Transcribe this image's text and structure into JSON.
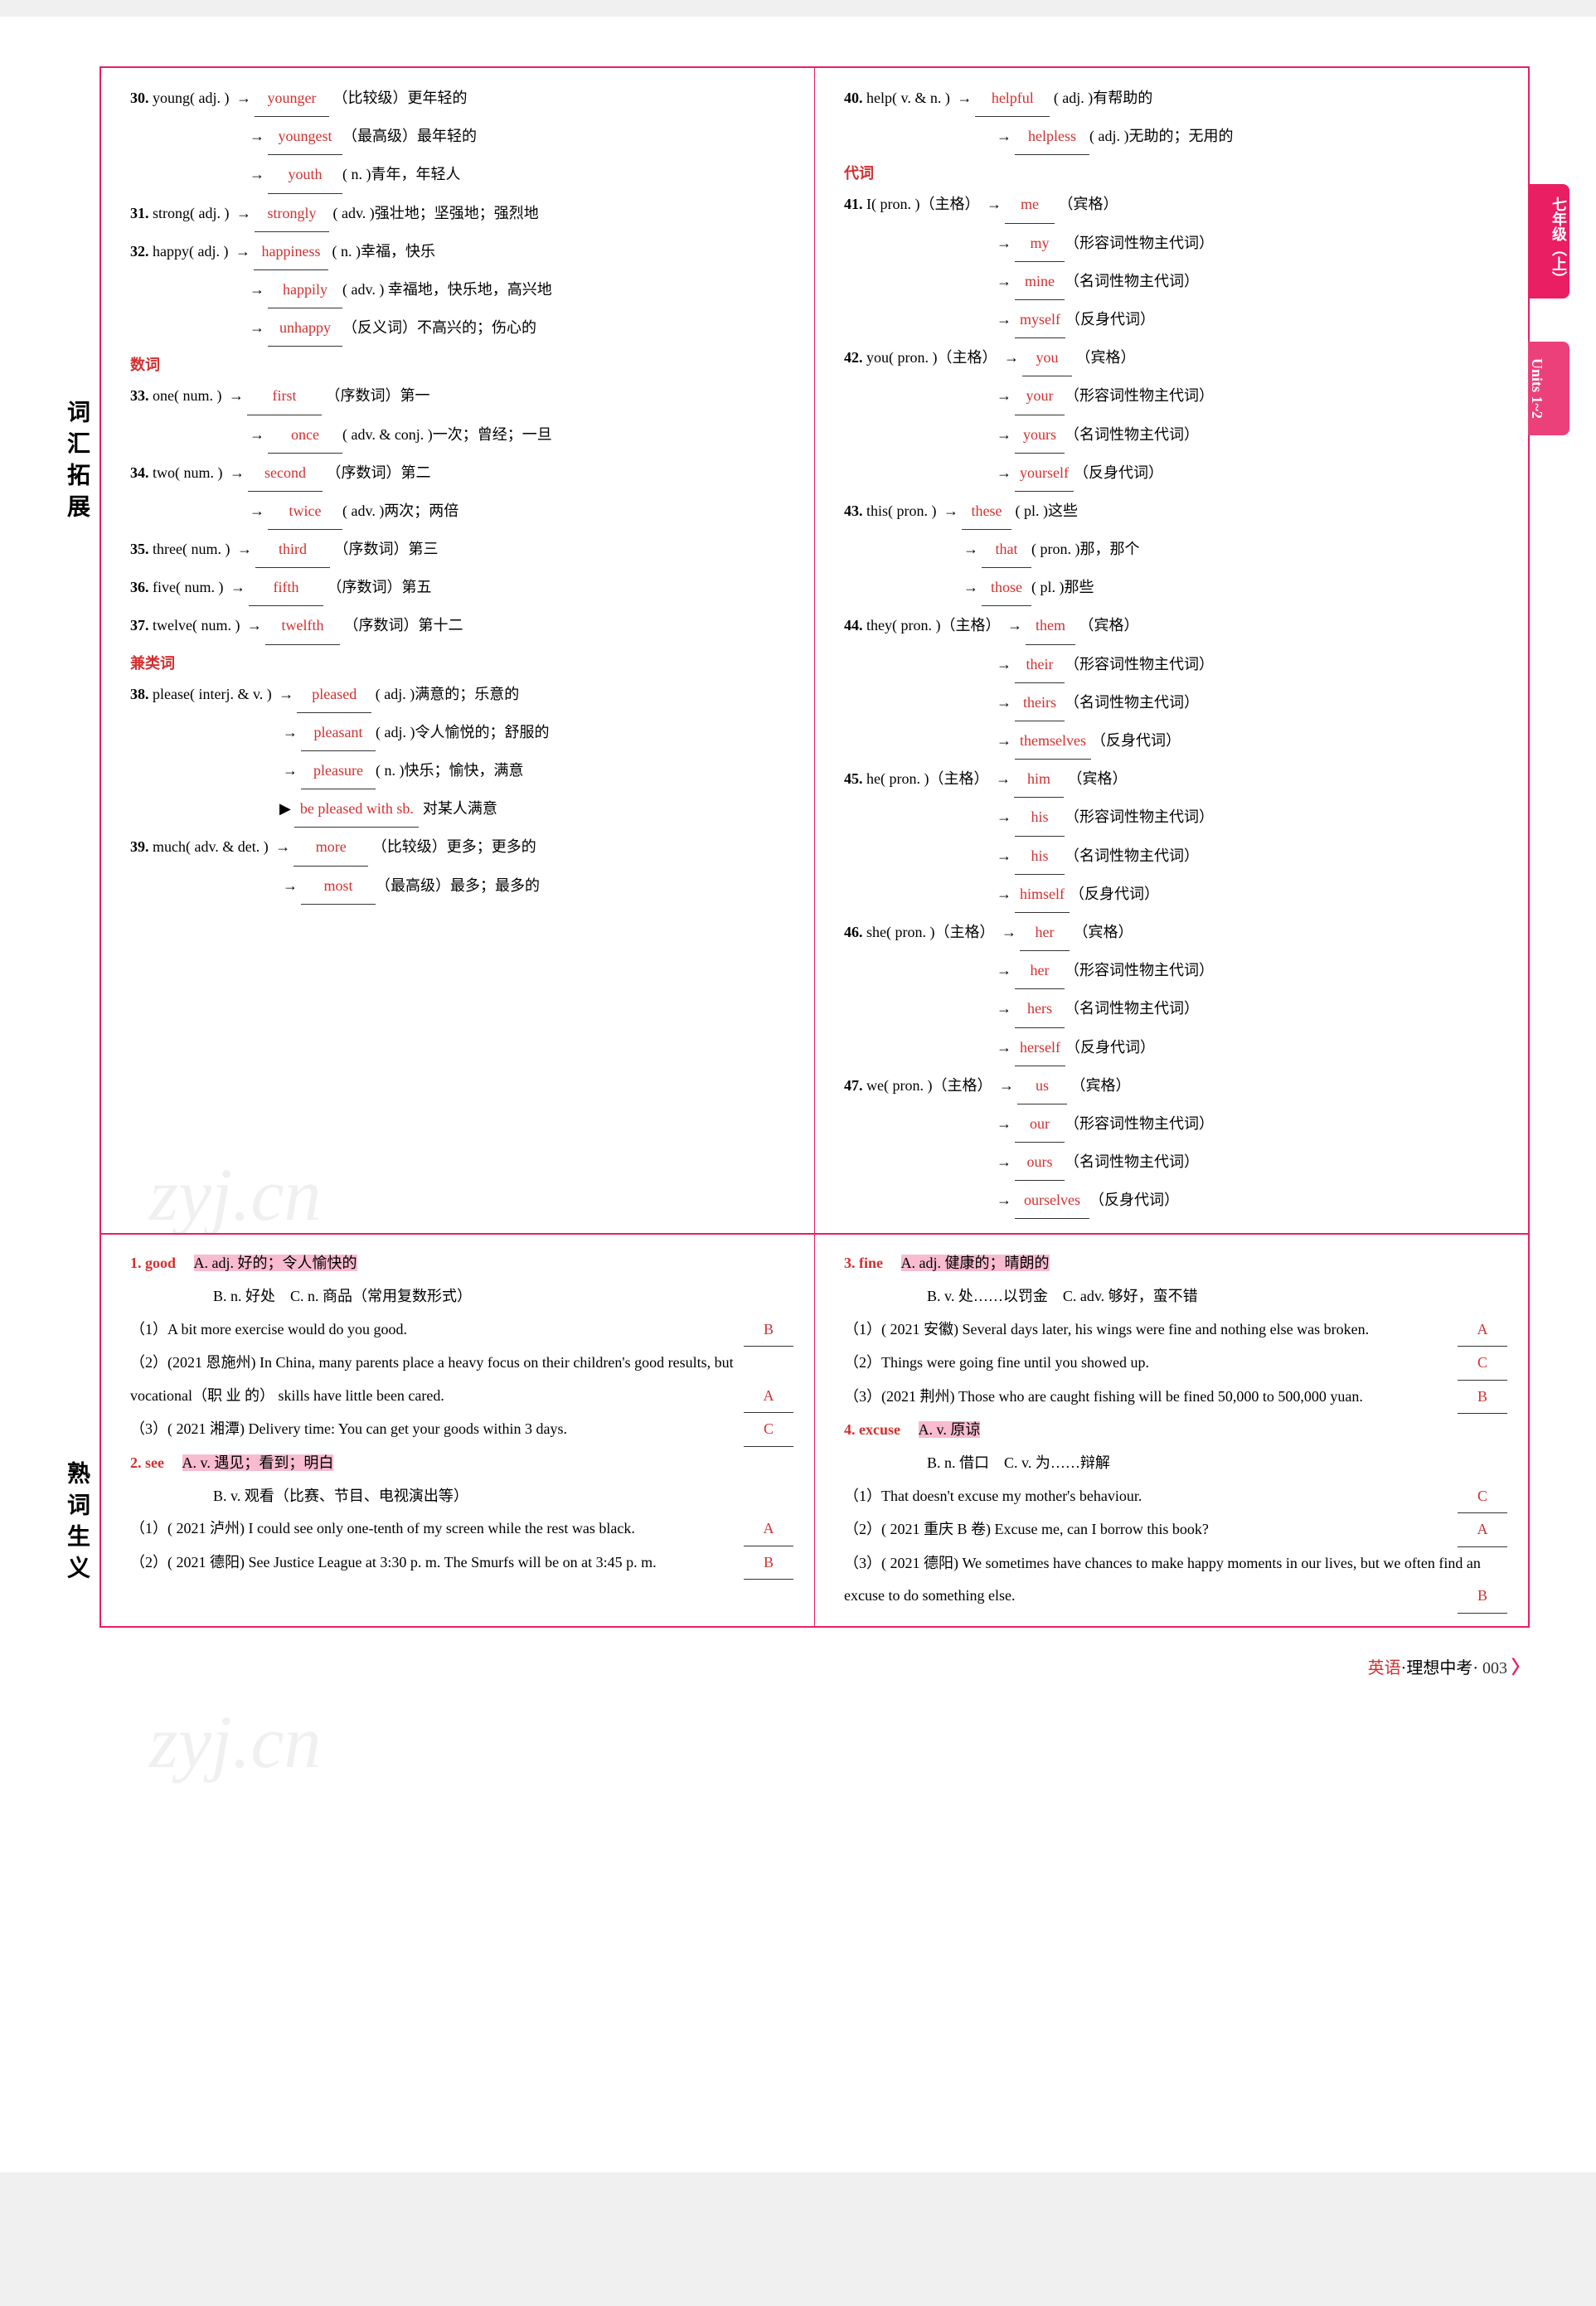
{
  "sideLabels": {
    "top": "词汇拓展",
    "bottom": "熟词生义"
  },
  "tabs": {
    "a": "七年级（上）",
    "b": "Units 1~2"
  },
  "watermark": {
    "text": "zyj.cn"
  },
  "footer": {
    "subject": "英语",
    "book": "·理想中考·",
    "page": "003"
  },
  "leftCol": {
    "e30": {
      "num": "30.",
      "head": "young( adj. )",
      "l1a": "younger",
      "l1b": "（比较级）更年轻的",
      "l2a": "youngest",
      "l2b": "（最高级）最年轻的",
      "l3a": "youth",
      "l3b": "( n. )青年，年轻人"
    },
    "e31": {
      "num": "31.",
      "head": "strong( adj. )",
      "l1a": "strongly",
      "l1b": "( adv. )强壮地；坚强地；强烈地"
    },
    "e32": {
      "num": "32.",
      "head": "happy( adj. )",
      "l1a": "happiness",
      "l1b": "( n. )幸福，快乐",
      "l2a": "happily",
      "l2b": "( adv. ) 幸福地，快乐地，高兴地",
      "l3a": "unhappy",
      "l3b": "（反义词）不高兴的；伤心的"
    },
    "sub1": "数词",
    "e33": {
      "num": "33.",
      "head": "one( num. )",
      "l1a": "first",
      "l1b": "（序数词）第一",
      "l2a": "once",
      "l2b": "( adv. & conj. )一次；曾经；一旦"
    },
    "e34": {
      "num": "34.",
      "head": "two( num. )",
      "l1a": "second",
      "l1b": "（序数词）第二",
      "l2a": "twice",
      "l2b": "( adv. )两次；两倍"
    },
    "e35": {
      "num": "35.",
      "head": "three( num. )",
      "l1a": "third",
      "l1b": "（序数词）第三"
    },
    "e36": {
      "num": "36.",
      "head": "five( num. )",
      "l1a": "fifth",
      "l1b": "（序数词）第五"
    },
    "e37": {
      "num": "37.",
      "head": "twelve( num. )",
      "l1a": "twelfth",
      "l1b": "（序数词）第十二"
    },
    "sub2": "兼类词",
    "e38": {
      "num": "38.",
      "head": "please( interj. & v. )",
      "l1a": "pleased",
      "l1b": "( adj. )满意的；乐意的",
      "l2a": "pleasant",
      "l2b": "( adj. )令人愉悦的；舒服的",
      "l3a": "pleasure",
      "l3b": "( n. )快乐；愉快，满意",
      "l4a": "be pleased with sb.",
      "l4b": "对某人满意"
    },
    "e39": {
      "num": "39.",
      "head": "much( adv. & det. )",
      "l1a": "more",
      "l1b": "（比较级）更多；更多的",
      "l2a": "most",
      "l2b": "（最高级）最多；最多的"
    }
  },
  "rightCol": {
    "e40": {
      "num": "40.",
      "head": "help( v. & n. )",
      "l1a": "helpful",
      "l1b": "( adj. )有帮助的",
      "l2a": "helpless",
      "l2b": "( adj. )无助的；无用的"
    },
    "sub1": "代词",
    "e41": {
      "num": "41.",
      "head": "I( pron. )（主格）",
      "l1a": "me",
      "l1b": "（宾格）",
      "l2a": "my",
      "l2b": "（形容词性物主代词）",
      "l3a": "mine",
      "l3b": "（名词性物主代词）",
      "l4a": "myself",
      "l4b": "（反身代词）"
    },
    "e42": {
      "num": "42.",
      "head": "you( pron. )（主格）",
      "l1a": "you",
      "l1b": "（宾格）",
      "l2a": "your",
      "l2b": "（形容词性物主代词）",
      "l3a": "yours",
      "l3b": "（名词性物主代词）",
      "l4a": "yourself",
      "l4b": "（反身代词）"
    },
    "e43": {
      "num": "43.",
      "head": "this( pron. )",
      "l1a": "these",
      "l1b": "( pl. )这些",
      "l2a": "that",
      "l2b": "( pron. )那，那个",
      "l3a": "those",
      "l3b": "( pl. )那些"
    },
    "e44": {
      "num": "44.",
      "head": "they( pron. )（主格）",
      "l1a": "them",
      "l1b": "（宾格）",
      "l2a": "their",
      "l2b": "（形容词性物主代词）",
      "l3a": "theirs",
      "l3b": "（名词性物主代词）",
      "l4a": "themselves",
      "l4b": "（反身代词）"
    },
    "e45": {
      "num": "45.",
      "head": "he( pron. )（主格）",
      "l1a": "him",
      "l1b": "（宾格）",
      "l2a": "his",
      "l2b": "（形容词性物主代词）",
      "l3a": "his",
      "l3b": "（名词性物主代词）",
      "l4a": "himself",
      "l4b": "（反身代词）"
    },
    "e46": {
      "num": "46.",
      "head": "she( pron. )（主格）",
      "l1a": "her",
      "l1b": "（宾格）",
      "l2a": "her",
      "l2b": "（形容词性物主代词）",
      "l3a": "hers",
      "l3b": "（名词性物主代词）",
      "l4a": "herself",
      "l4b": "（反身代词）"
    },
    "e47": {
      "num": "47.",
      "head": "we( pron. )（主格）",
      "l1a": "us",
      "l1b": "（宾格）",
      "l2a": "our",
      "l2b": "（形容词性物主代词）",
      "l3a": "ours",
      "l3b": "（名词性物主代词）",
      "l4a": "ourselves",
      "l4b": "（反身代词）"
    }
  },
  "sec2": {
    "left": {
      "w1": {
        "num": "1.",
        "word": "good",
        "A": "A. adj. 好的；令人愉快的",
        "opts": "B. n. 好处　C. n. 商品（常用复数形式）",
        "q1": "（1）A bit more exercise would do you good.",
        "a1": "B",
        "q2": "（2）(2021 恩施州) In China, many parents place a heavy focus on their children's good results, but vocational（职 业 的） skills have little been cared.",
        "a2": "A",
        "q3": "（3）( 2021 湘潭) Delivery time: You can get your goods within 3 days.",
        "a3": "C"
      },
      "w2": {
        "num": "2.",
        "word": "see",
        "A": "A. v. 遇见；看到；明白",
        "opts": "B. v. 观看（比赛、节目、电视演出等）",
        "q1": "（1）( 2021 泸州) I could see only one-tenth of my screen while the rest was black.",
        "a1": "A",
        "q2": "（2）( 2021 德阳) See Justice League at 3:30 p. m. The Smurfs will be on at 3:45 p. m.",
        "a2": "B"
      }
    },
    "right": {
      "w3": {
        "num": "3.",
        "word": "fine",
        "A": "A. adj. 健康的；晴朗的",
        "opts": "B. v. 处……以罚金　C. adv. 够好，蛮不错",
        "q1": "（1）( 2021 安徽) Several days later, his wings were fine and nothing else was broken.",
        "a1": "A",
        "q2": "（2）Things were going fine until you showed up.",
        "a2": "C",
        "q3": "（3）(2021 荆州) Those who are caught fishing will be fined 50,000 to 500,000 yuan.",
        "a3": "B"
      },
      "w4": {
        "num": "4.",
        "word": "excuse",
        "A": "A. v. 原谅",
        "opts": "B. n. 借口　C. v. 为……辩解",
        "q1": "（1）That doesn't excuse my mother's behaviour.",
        "a1": "C",
        "q2": "（2）( 2021 重庆 B 卷) Excuse me, can I borrow this book?",
        "a2": "A",
        "q3": "（3）( 2021 德阳) We sometimes have chances to make happy moments in our lives, but we often find an excuse to do something else.",
        "a3": "B"
      }
    }
  }
}
